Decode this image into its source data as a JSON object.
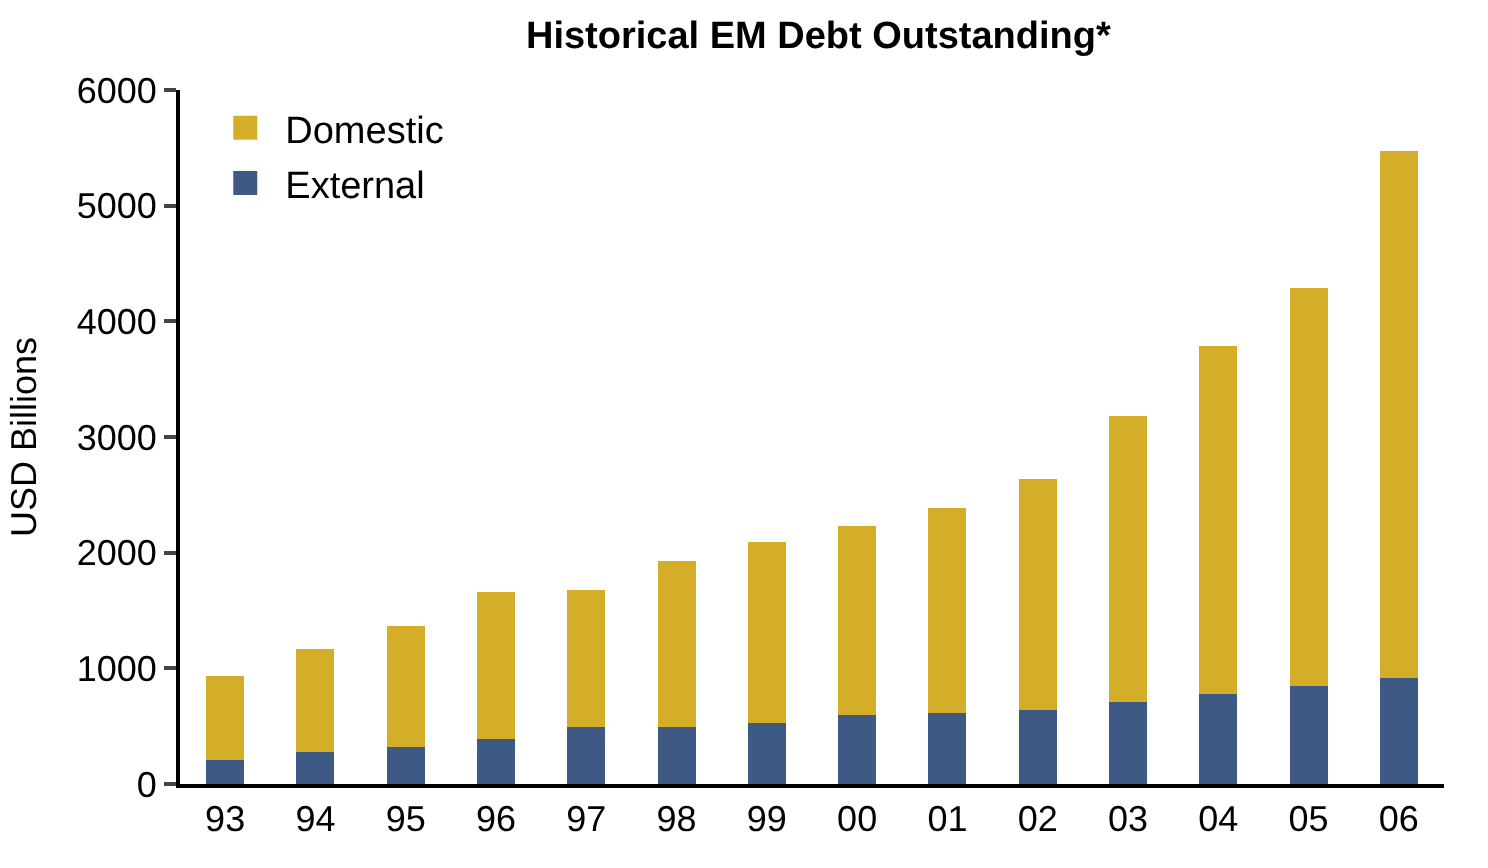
{
  "chart_data": {
    "type": "bar",
    "title": "Historical EM Debt Outstanding*",
    "ylabel": "USD Billions",
    "categories": [
      "93",
      "94",
      "95",
      "96",
      "97",
      "98",
      "99",
      "00",
      "01",
      "02",
      "03",
      "04",
      "05",
      "06"
    ],
    "stacked": true,
    "series": [
      {
        "name": "External",
        "color": "#3e5a84",
        "values": [
          210,
          280,
          320,
          390,
          490,
          490,
          530,
          600,
          610,
          640,
          710,
          780,
          850,
          920
        ]
      },
      {
        "name": "Domestic",
        "color": "#d4ae29",
        "values": [
          720,
          890,
          1050,
          1270,
          1190,
          1440,
          1560,
          1630,
          1780,
          2000,
          2470,
          3010,
          3440,
          4550
        ]
      }
    ],
    "ylim": [
      0,
      6000
    ],
    "yticks": [
      0,
      1000,
      2000,
      3000,
      4000,
      5000,
      6000
    ],
    "legend": "top left"
  }
}
